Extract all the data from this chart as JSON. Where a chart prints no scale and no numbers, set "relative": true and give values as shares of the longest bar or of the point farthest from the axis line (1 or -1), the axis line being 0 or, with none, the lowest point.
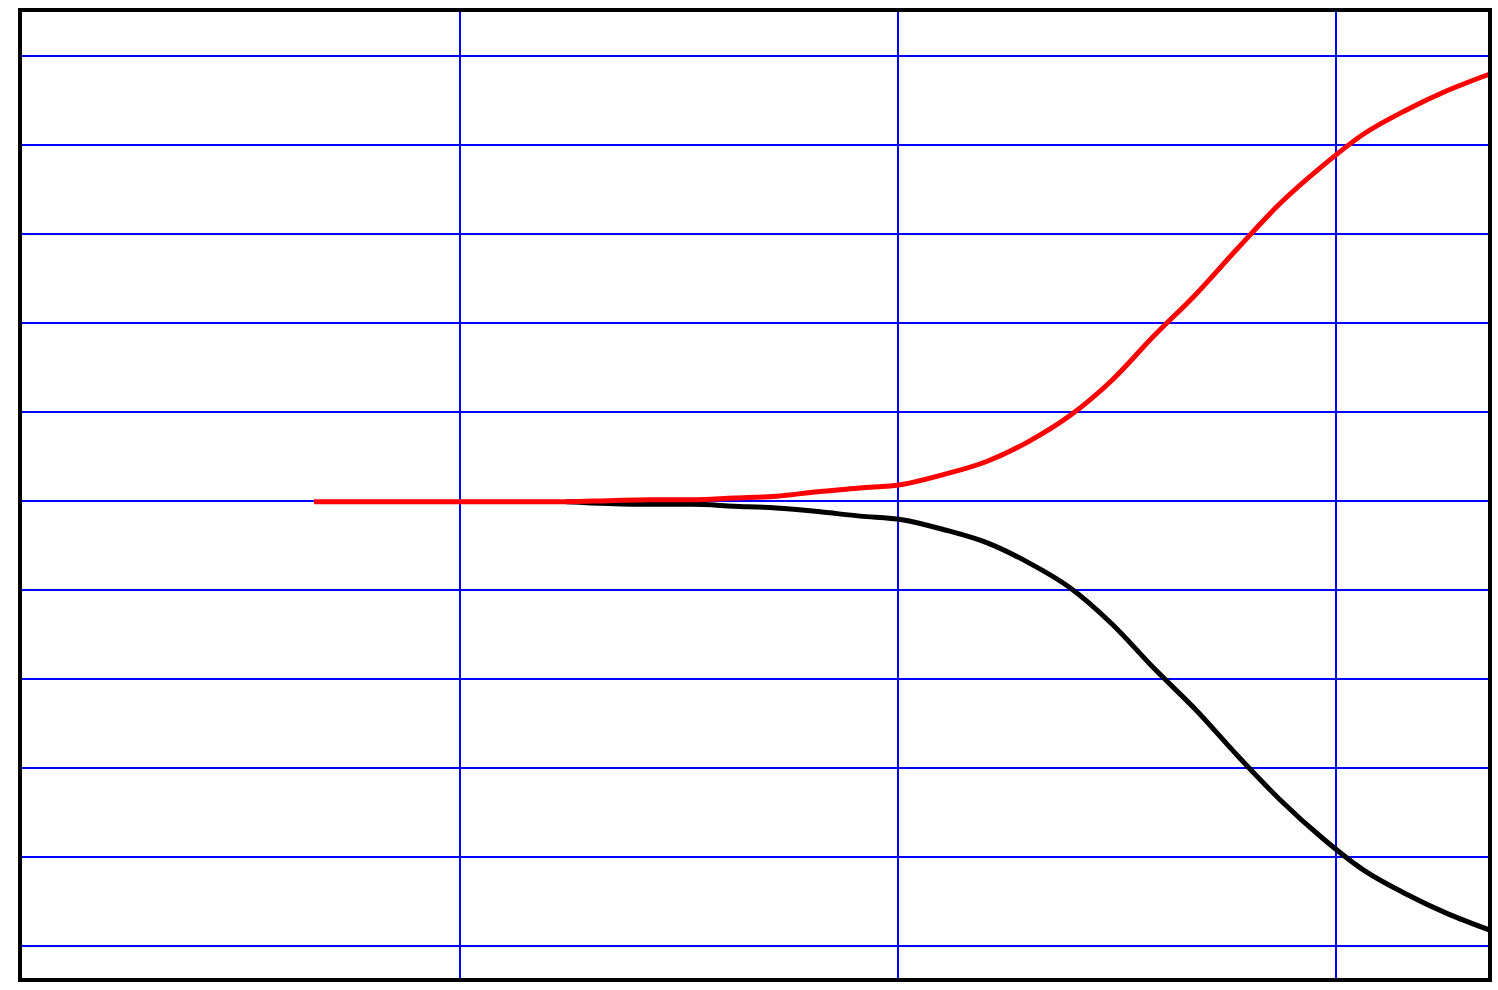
{
  "chart_data": {
    "type": "line",
    "relative": true,
    "grid": true,
    "marker": "none",
    "line_style": "solid",
    "categories": [
      null,
      null,
      null,
      null,
      null,
      null,
      null,
      null,
      null,
      null,
      null,
      null,
      null,
      null,
      null,
      null,
      null,
      null,
      null,
      null,
      null,
      null,
      null,
      null,
      null,
      null,
      null,
      null,
      null,
      null,
      null,
      null,
      null,
      null,
      null,
      null
    ],
    "series": [
      {
        "color": "#000000",
        "values": [
          null,
          null,
          null,
          null,
          null,
          null,
          null,
          null,
          null,
          null,
          null,
          null,
          null,
          0.528,
          0.526,
          0.525,
          0.525,
          0.523,
          0.521,
          0.517,
          0.512,
          0.508,
          0.497,
          0.483,
          0.461,
          0.433,
          0.393,
          0.344,
          0.298,
          0.247,
          0.199,
          0.157,
          0.121,
          0.095,
          0.073,
          0.055
        ]
      },
      {
        "color": "#ff0000",
        "values": [
          null,
          null,
          null,
          null,
          null,
          null,
          null,
          0.528,
          0.528,
          0.528,
          0.528,
          0.528,
          0.528,
          0.528,
          0.529,
          0.53,
          0.53,
          0.532,
          0.534,
          0.539,
          0.543,
          0.547,
          0.558,
          0.572,
          0.594,
          0.623,
          0.662,
          0.711,
          0.757,
          0.808,
          0.857,
          0.898,
          0.934,
          0.96,
          0.982,
          1
        ]
      }
    ]
  }
}
